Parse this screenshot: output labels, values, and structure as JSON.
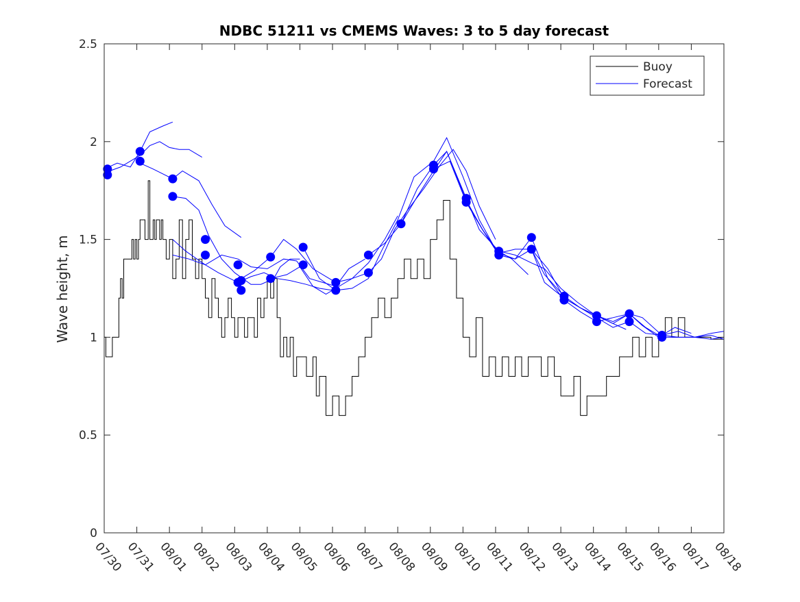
{
  "chart_data": {
    "type": "line",
    "title": "NDBC 51211 vs CMEMS Waves: 3 to 5 day forecast",
    "xlabel": "",
    "ylabel": "Wave height, m",
    "xlim": [
      0,
      19
    ],
    "ylim": [
      0,
      2.5
    ],
    "yticks": [
      0,
      0.5,
      1,
      1.5,
      2,
      2.5
    ],
    "ytick_labels": [
      "0",
      "0.5",
      "1",
      "1.5",
      "2",
      "2.5"
    ],
    "xtick_labels": [
      "07/30",
      "07/31",
      "08/01",
      "08/02",
      "08/03",
      "08/04",
      "08/05",
      "08/06",
      "08/07",
      "08/08",
      "08/09",
      "08/10",
      "08/11",
      "08/12",
      "08/13",
      "08/14",
      "08/15",
      "08/16",
      "08/17",
      "08/18"
    ],
    "grid": false,
    "legend": {
      "position": "top-right",
      "entries": [
        {
          "label": "Buoy",
          "color": "#000000"
        },
        {
          "label": "Forecast",
          "color": "#0000ff"
        }
      ]
    },
    "colors": {
      "buoy": "#000000",
      "forecast": "#0000ff",
      "axes": "#262626"
    },
    "buoy": {
      "name": "Buoy",
      "x": [
        0,
        0.05,
        0.1,
        0.25,
        0.3,
        0.45,
        0.5,
        0.55,
        0.6,
        0.65,
        0.7,
        0.8,
        0.85,
        0.9,
        0.95,
        1.0,
        1.05,
        1.1,
        1.2,
        1.25,
        1.35,
        1.4,
        1.5,
        1.55,
        1.6,
        1.7,
        1.75,
        1.8,
        1.9,
        2.0,
        2.1,
        2.2,
        2.3,
        2.4,
        2.5,
        2.6,
        2.7,
        2.8,
        2.9,
        3.0,
        3.1,
        3.2,
        3.3,
        3.4,
        3.5,
        3.6,
        3.7,
        3.8,
        3.9,
        4.0,
        4.1,
        4.2,
        4.3,
        4.4,
        4.5,
        4.6,
        4.7,
        4.8,
        4.9,
        5.0,
        5.1,
        5.2,
        5.3,
        5.4,
        5.5,
        5.6,
        5.7,
        5.8,
        5.9,
        6.0,
        6.2,
        6.4,
        6.5,
        6.6,
        6.8,
        7.0,
        7.2,
        7.4,
        7.6,
        7.8,
        8.0,
        8.2,
        8.4,
        8.6,
        8.8,
        9.0,
        9.2,
        9.4,
        9.6,
        9.8,
        10.0,
        10.2,
        10.4,
        10.6,
        10.8,
        11.0,
        11.2,
        11.4,
        11.6,
        11.8,
        12.0,
        12.2,
        12.4,
        12.6,
        12.8,
        13.0,
        13.2,
        13.4,
        13.6,
        13.8,
        14.0,
        14.2,
        14.4,
        14.6,
        14.8,
        15.0,
        15.2,
        15.4,
        15.6,
        15.8,
        16.0,
        16.2,
        16.4,
        16.6,
        16.8,
        17.0,
        17.2,
        17.4,
        17.6,
        17.8,
        18.0,
        18.2,
        18.4,
        18.6,
        18.8,
        19.0
      ],
      "values": [
        1.0,
        0.9,
        0.9,
        1.0,
        1.0,
        1.2,
        1.3,
        1.2,
        1.4,
        1.4,
        1.4,
        1.4,
        1.5,
        1.4,
        1.5,
        1.4,
        1.5,
        1.6,
        1.6,
        1.5,
        1.8,
        1.5,
        1.6,
        1.5,
        1.6,
        1.5,
        1.6,
        1.5,
        1.4,
        1.5,
        1.3,
        1.4,
        1.6,
        1.3,
        1.5,
        1.6,
        1.4,
        1.3,
        1.4,
        1.3,
        1.2,
        1.1,
        1.3,
        1.2,
        1.1,
        1.0,
        1.1,
        1.2,
        1.1,
        1.0,
        1.1,
        1.1,
        1.0,
        1.1,
        1.1,
        1.0,
        1.2,
        1.1,
        1.2,
        1.3,
        1.2,
        1.3,
        1.1,
        0.9,
        1.0,
        0.9,
        1.0,
        0.8,
        0.9,
        0.9,
        0.8,
        0.9,
        0.7,
        0.8,
        0.6,
        0.7,
        0.6,
        0.7,
        0.8,
        0.9,
        1.0,
        1.1,
        1.2,
        1.1,
        1.2,
        1.3,
        1.4,
        1.3,
        1.4,
        1.3,
        1.5,
        1.6,
        1.7,
        1.4,
        1.2,
        1.0,
        0.9,
        1.1,
        0.8,
        0.9,
        0.8,
        0.9,
        0.8,
        0.9,
        0.8,
        0.9,
        0.9,
        0.8,
        0.9,
        0.8,
        0.7,
        0.7,
        0.8,
        0.6,
        0.7,
        0.7,
        0.7,
        0.8,
        0.8,
        0.9,
        0.9,
        1.0,
        0.9,
        1.0,
        0.9,
        1.0,
        1.1,
        1.0,
        1.1,
        1.0,
        1.0,
        1.0,
        1.0,
        0.99,
        0.99,
        0.98
      ]
    },
    "forecast": [
      {
        "name": "Forecast",
        "x": [
          0,
          0.4,
          0.8,
          1.1,
          1.4,
          1.8,
          2.1
        ],
        "values": [
          1.86,
          1.89,
          1.87,
          1.95,
          2.05,
          2.08,
          2.1
        ]
      },
      {
        "name": "Forecast",
        "x": [
          0,
          0.5,
          1.1,
          1.4,
          1.7,
          2.0,
          2.3,
          2.6,
          3.0
        ],
        "values": [
          1.84,
          1.87,
          1.93,
          1.98,
          2.0,
          1.97,
          1.96,
          1.96,
          1.92
        ]
      },
      {
        "name": "Forecast",
        "x": [
          1.1,
          1.5,
          2.1,
          2.4,
          2.9,
          3.3,
          3.7,
          4.2
        ],
        "values": [
          1.89,
          1.86,
          1.81,
          1.85,
          1.8,
          1.68,
          1.57,
          1.51
        ]
      },
      {
        "name": "Forecast",
        "x": [
          2.1,
          2.5,
          2.9,
          3.2,
          3.6,
          4.0,
          4.5,
          4.8,
          5.2,
          5.4,
          5.7,
          6.0
        ],
        "values": [
          1.72,
          1.71,
          1.65,
          1.52,
          1.4,
          1.33,
          1.27,
          1.27,
          1.3,
          1.36,
          1.4,
          1.4
        ]
      },
      {
        "name": "Forecast",
        "x": [
          2.1,
          2.6,
          3.1,
          3.5,
          4.1,
          4.5,
          4.9,
          5.3,
          5.7,
          6.2,
          6.6,
          7.0
        ],
        "values": [
          1.42,
          1.4,
          1.37,
          1.33,
          1.28,
          1.31,
          1.33,
          1.3,
          1.29,
          1.27,
          1.25,
          1.24
        ]
      },
      {
        "name": "Forecast",
        "x": [
          2.1,
          2.5,
          3.1,
          3.6,
          4.1,
          4.5,
          5.0,
          5.5,
          5.9,
          6.3,
          6.7,
          7.1,
          7.5,
          8.0
        ],
        "values": [
          1.5,
          1.44,
          1.37,
          1.42,
          1.4,
          1.36,
          1.35,
          1.4,
          1.39,
          1.3,
          1.28,
          1.26,
          1.35,
          1.4
        ]
      },
      {
        "name": "Forecast",
        "x": [
          4.1,
          4.6,
          5.1,
          5.5,
          5.9,
          6.4,
          6.9,
          7.1,
          7.6,
          8.1,
          8.6,
          9.0
        ],
        "values": [
          1.29,
          1.34,
          1.41,
          1.5,
          1.45,
          1.35,
          1.3,
          1.28,
          1.3,
          1.38,
          1.5,
          1.62
        ]
      },
      {
        "name": "Forecast",
        "x": [
          5.1,
          5.6,
          6.0,
          6.4,
          6.8,
          7.1,
          7.6,
          8.1,
          8.5,
          8.9,
          9.3,
          9.8,
          10.3,
          10.7,
          11.1,
          11.5,
          12.0
        ],
        "values": [
          1.3,
          1.32,
          1.36,
          1.26,
          1.22,
          1.25,
          1.3,
          1.33,
          1.4,
          1.55,
          1.65,
          1.76,
          1.88,
          1.96,
          1.85,
          1.67,
          1.5
        ]
      },
      {
        "name": "Forecast",
        "x": [
          6.1,
          6.6,
          7.1,
          7.6,
          8.1,
          8.5,
          9.0,
          9.5,
          10.1,
          10.5,
          11.0,
          11.5,
          12.0,
          12.5,
          13.0
        ],
        "values": [
          1.46,
          1.3,
          1.24,
          1.25,
          1.3,
          1.44,
          1.6,
          1.82,
          1.9,
          2.02,
          1.82,
          1.6,
          1.45,
          1.4,
          1.32
        ]
      },
      {
        "name": "Forecast",
        "x": [
          8.1,
          8.6,
          9.1,
          9.6,
          10.1,
          10.5,
          11.1,
          11.5,
          12.1,
          12.6,
          13.1,
          13.5,
          14.0,
          14.5,
          15.0
        ],
        "values": [
          1.42,
          1.48,
          1.58,
          1.72,
          1.85,
          1.95,
          1.71,
          1.55,
          1.44,
          1.42,
          1.38,
          1.35,
          1.25,
          1.18,
          1.12
        ]
      },
      {
        "name": "Forecast",
        "x": [
          9.1,
          9.6,
          10.1,
          10.5,
          11.1,
          11.6,
          12.1,
          12.6,
          13.1,
          13.5,
          14.1,
          14.6,
          15.1,
          15.6,
          16.0
        ],
        "values": [
          1.58,
          1.76,
          1.88,
          1.95,
          1.7,
          1.55,
          1.43,
          1.45,
          1.45,
          1.28,
          1.2,
          1.15,
          1.11,
          1.07,
          1.04
        ]
      },
      {
        "name": "Forecast",
        "x": [
          10.1,
          10.6,
          11.1,
          11.6,
          12.1,
          12.6,
          13.1,
          13.5,
          14.1,
          14.6,
          15.1,
          15.6,
          16.1,
          16.5,
          17.0
        ],
        "values": [
          1.86,
          1.9,
          1.69,
          1.55,
          1.42,
          1.4,
          1.45,
          1.32,
          1.21,
          1.15,
          1.11,
          1.07,
          1.12,
          1.06,
          1.0
        ]
      },
      {
        "name": "Forecast",
        "x": [
          11.1,
          11.6,
          12.1,
          12.6,
          13.1,
          13.6,
          14.1,
          14.6,
          15.1,
          15.6,
          16.1,
          16.5,
          17.1,
          17.5,
          18.0
        ],
        "values": [
          1.69,
          1.55,
          1.43,
          1.4,
          1.51,
          1.3,
          1.19,
          1.13,
          1.08,
          1.1,
          1.12,
          1.1,
          1.01,
          1.05,
          1.02
        ]
      },
      {
        "name": "Forecast",
        "x": [
          13.1,
          13.6,
          14.1,
          14.6,
          15.1,
          15.6,
          16.1,
          16.6,
          17.1,
          17.6,
          18.1,
          18.6,
          19.0
        ],
        "values": [
          1.45,
          1.35,
          1.2,
          1.15,
          1.1,
          1.05,
          1.08,
          1.02,
          1.01,
          1.0,
          1.0,
          1.02,
          1.03
        ]
      },
      {
        "name": "Forecast",
        "x": [
          15.1,
          15.6,
          16.1,
          16.6,
          17.1,
          17.6,
          18.1,
          18.6,
          19.0
        ],
        "values": [
          1.11,
          1.08,
          1.12,
          1.05,
          1.0,
          1.0,
          1.0,
          0.99,
          1.0
        ]
      },
      {
        "name": "Forecast",
        "x": [
          17.1,
          17.6,
          18.1,
          18.6,
          19.0
        ],
        "values": [
          1.01,
          1.03,
          1.0,
          1.01,
          0.99
        ]
      }
    ],
    "markers": {
      "name": "Forecast start points",
      "x": [
        0.1,
        0.1,
        1.1,
        1.1,
        2.1,
        2.1,
        3.1,
        3.1,
        4.1,
        4.1,
        4.2,
        4.2,
        5.1,
        5.1,
        6.1,
        6.1,
        7.1,
        7.1,
        8.1,
        8.1,
        9.1,
        10.1,
        10.1,
        11.1,
        11.1,
        12.1,
        12.1,
        13.1,
        13.1,
        14.1,
        14.1,
        15.1,
        15.1,
        16.1,
        16.1,
        17.1,
        17.1
      ],
      "values": [
        1.86,
        1.83,
        1.95,
        1.9,
        1.81,
        1.72,
        1.5,
        1.42,
        1.37,
        1.28,
        1.29,
        1.24,
        1.41,
        1.3,
        1.46,
        1.37,
        1.28,
        1.24,
        1.42,
        1.33,
        1.58,
        1.88,
        1.86,
        1.71,
        1.69,
        1.44,
        1.42,
        1.51,
        1.45,
        1.21,
        1.19,
        1.11,
        1.08,
        1.12,
        1.08,
        1.01,
        1.0
      ]
    }
  }
}
